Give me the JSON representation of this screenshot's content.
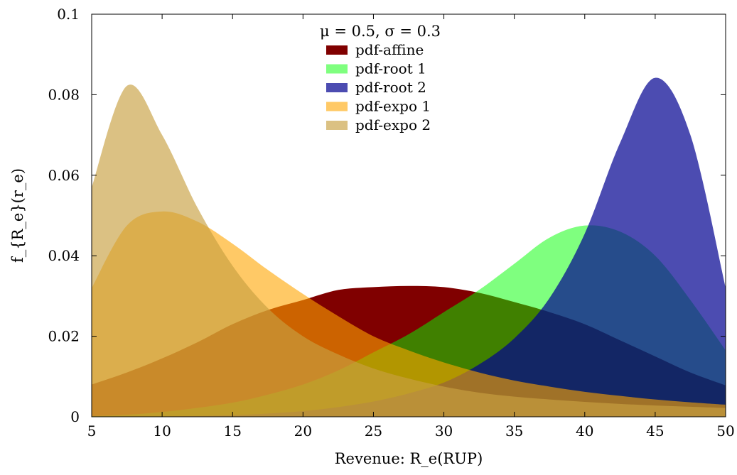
{
  "chart_data": {
    "type": "area",
    "ylabel": "f_{R_e}(r_e)",
    "xlabel": "Revenue: R_e(RUP)",
    "xlim": [
      5,
      50
    ],
    "ylim": [
      0,
      0.1
    ],
    "xticks": [
      "5",
      "10",
      "15",
      "20",
      "25",
      "30",
      "35",
      "40",
      "45",
      "50"
    ],
    "yticks": [
      "0",
      "0.02",
      "0.04",
      "0.06",
      "0.08",
      "0.1"
    ],
    "legend_title": "μ = 0.5, σ = 0.3",
    "legend_position": "top-center",
    "grid": false,
    "x": [
      5,
      7.5,
      10,
      12.5,
      15,
      17.5,
      20,
      22.5,
      25,
      27.5,
      30,
      32.5,
      35,
      37.5,
      40,
      42.5,
      45,
      47.5,
      50
    ],
    "series": [
      {
        "name": "pdf-affine",
        "color": "#800000",
        "opacity": 1.0,
        "values": [
          0.008,
          0.011,
          0.0145,
          0.0185,
          0.023,
          0.0265,
          0.029,
          0.0315,
          0.0322,
          0.0325,
          0.0322,
          0.0308,
          0.0285,
          0.026,
          0.023,
          0.019,
          0.015,
          0.011,
          0.0078
        ]
      },
      {
        "name": "pdf-root 1",
        "color": "#00ff00",
        "opacity": 0.5,
        "values": [
          0.0002,
          0.0005,
          0.0012,
          0.0022,
          0.0035,
          0.0055,
          0.008,
          0.0115,
          0.016,
          0.0205,
          0.026,
          0.0315,
          0.038,
          0.0445,
          0.0475,
          0.046,
          0.04,
          0.029,
          0.0165
        ]
      },
      {
        "name": "pdf-root 2",
        "color": "#000090",
        "opacity": 0.7,
        "values": [
          0.0,
          0.0,
          0.0001,
          0.0002,
          0.0004,
          0.0008,
          0.0014,
          0.0024,
          0.0038,
          0.0058,
          0.0085,
          0.013,
          0.0195,
          0.0295,
          0.0455,
          0.068,
          0.0842,
          0.07,
          0.032
        ]
      },
      {
        "name": "pdf-expo 1",
        "color": "#ffa500",
        "opacity": 0.6,
        "values": [
          0.032,
          0.0475,
          0.051,
          0.0485,
          0.043,
          0.0365,
          0.0305,
          0.025,
          0.02,
          0.0165,
          0.0135,
          0.011,
          0.009,
          0.0075,
          0.0062,
          0.0052,
          0.0043,
          0.0036,
          0.003
        ]
      },
      {
        "name": "pdf-expo 2",
        "color": "#c8a040",
        "opacity": 0.65,
        "values": [
          0.057,
          0.0822,
          0.07,
          0.052,
          0.0375,
          0.027,
          0.02,
          0.0155,
          0.012,
          0.0095,
          0.0075,
          0.006,
          0.005,
          0.0043,
          0.0037,
          0.0032,
          0.0028,
          0.0025,
          0.0022
        ]
      }
    ]
  }
}
